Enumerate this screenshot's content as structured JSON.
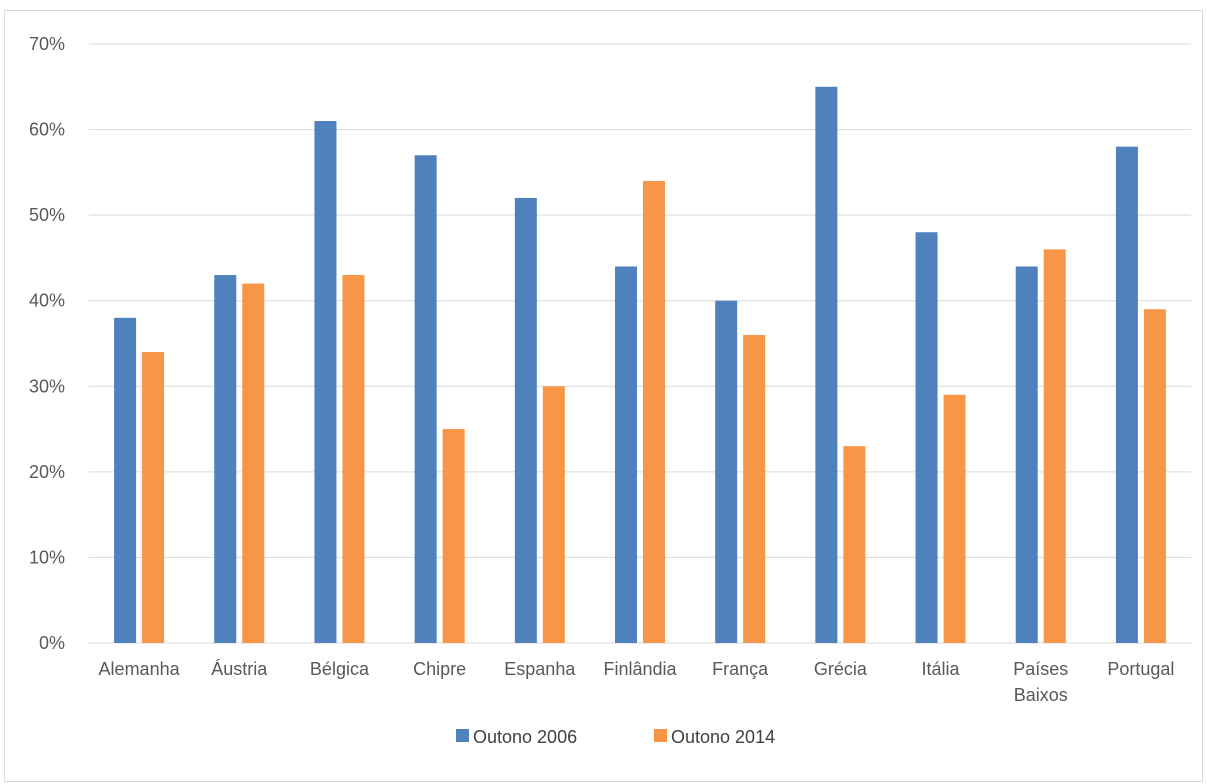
{
  "chart_data": {
    "type": "bar",
    "categories": [
      "Alemanha",
      "Áustria",
      "Bélgica",
      "Chipre",
      "Espanha",
      "Finlândia",
      "França",
      "Grécia",
      "Itália",
      "Países Baixos",
      "Portugal"
    ],
    "category_lines": [
      [
        "Alemanha"
      ],
      [
        "Áustria"
      ],
      [
        "Bélgica"
      ],
      [
        "Chipre"
      ],
      [
        "Espanha"
      ],
      [
        "Finlândia"
      ],
      [
        "França"
      ],
      [
        "Grécia"
      ],
      [
        "Itália"
      ],
      [
        "Países",
        "Baixos"
      ],
      [
        "Portugal"
      ]
    ],
    "series": [
      {
        "name": "Outono 2006",
        "color": "#4f81bd",
        "values": [
          38,
          43,
          61,
          57,
          52,
          44,
          40,
          65,
          48,
          44,
          58
        ]
      },
      {
        "name": "Outono 2014",
        "color": "#f79646",
        "values": [
          34,
          42,
          43,
          25,
          30,
          54,
          36,
          23,
          29,
          46,
          39
        ]
      }
    ],
    "ylim": [
      0,
      70
    ],
    "yticks": [
      0,
      10,
      20,
      30,
      40,
      50,
      60,
      70
    ],
    "ytick_labels": [
      "0%",
      "10%",
      "20%",
      "30%",
      "40%",
      "50%",
      "60%",
      "70%"
    ],
    "grid": true,
    "legend": "bottom",
    "title": "",
    "xlabel": "",
    "ylabel": ""
  }
}
